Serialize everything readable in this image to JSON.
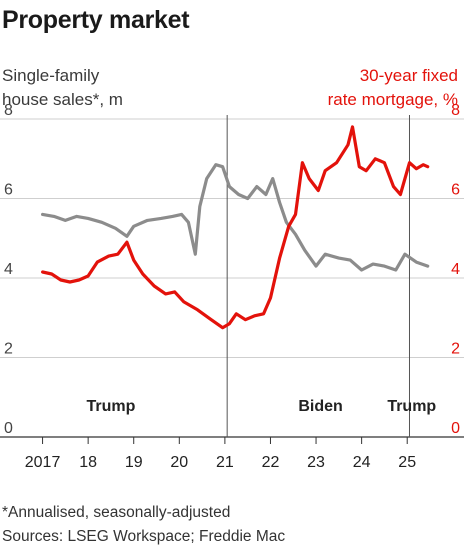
{
  "title": "Property market",
  "left_axis_label": [
    "Single-family",
    "house sales*, m"
  ],
  "right_axis_label": [
    "30-year fixed",
    "rate mortgage, %"
  ],
  "footnote": "*Annualised, seasonally-adjusted",
  "sources": "Sources: LSEG Workspace; Freddie Mac",
  "colors": {
    "sales": "#8c8c8c",
    "mortgage": "#e3120b",
    "grid": "#cfcfcf",
    "divider": "#555555"
  },
  "chart_data": {
    "type": "line",
    "x_ticks": [
      "2017",
      "18",
      "19",
      "20",
      "21",
      "22",
      "23",
      "24",
      "25"
    ],
    "xlim": [
      2016.9,
      2025.5
    ],
    "y_left": {
      "ylim": [
        0,
        8
      ],
      "ticks": [
        "0",
        "2",
        "4",
        "6",
        "8"
      ]
    },
    "y_right": {
      "ylim": [
        0,
        8
      ],
      "ticks": [
        "0",
        "2",
        "4",
        "6",
        "8"
      ]
    },
    "grid": true,
    "annotations": [
      {
        "label": "Trump",
        "x": 2018.5
      },
      {
        "label": "Biden",
        "x": 2023.1
      },
      {
        "label": "Trump",
        "x": 2025.1
      }
    ],
    "dividers": [
      2021.05,
      2025.05
    ],
    "series": [
      {
        "axis": "left",
        "color": "#8c8c8c",
        "points": [
          [
            2017.0,
            5.6
          ],
          [
            2017.25,
            5.55
          ],
          [
            2017.5,
            5.45
          ],
          [
            2017.75,
            5.55
          ],
          [
            2018.0,
            5.5
          ],
          [
            2018.3,
            5.4
          ],
          [
            2018.6,
            5.25
          ],
          [
            2018.85,
            5.05
          ],
          [
            2019.0,
            5.3
          ],
          [
            2019.3,
            5.45
          ],
          [
            2019.6,
            5.5
          ],
          [
            2019.85,
            5.55
          ],
          [
            2020.05,
            5.6
          ],
          [
            2020.2,
            5.4
          ],
          [
            2020.35,
            4.6
          ],
          [
            2020.45,
            5.8
          ],
          [
            2020.6,
            6.5
          ],
          [
            2020.8,
            6.85
          ],
          [
            2020.95,
            6.8
          ],
          [
            2021.1,
            6.3
          ],
          [
            2021.3,
            6.1
          ],
          [
            2021.5,
            6.0
          ],
          [
            2021.7,
            6.3
          ],
          [
            2021.9,
            6.1
          ],
          [
            2022.05,
            6.5
          ],
          [
            2022.2,
            5.9
          ],
          [
            2022.35,
            5.4
          ],
          [
            2022.55,
            5.1
          ],
          [
            2022.75,
            4.7
          ],
          [
            2023.0,
            4.3
          ],
          [
            2023.2,
            4.6
          ],
          [
            2023.5,
            4.5
          ],
          [
            2023.75,
            4.45
          ],
          [
            2024.0,
            4.2
          ],
          [
            2024.25,
            4.35
          ],
          [
            2024.5,
            4.3
          ],
          [
            2024.75,
            4.2
          ],
          [
            2024.95,
            4.6
          ],
          [
            2025.2,
            4.4
          ],
          [
            2025.45,
            4.3
          ]
        ]
      },
      {
        "axis": "right",
        "color": "#e3120b",
        "points": [
          [
            2017.0,
            4.15
          ],
          [
            2017.2,
            4.1
          ],
          [
            2017.4,
            3.95
          ],
          [
            2017.6,
            3.9
          ],
          [
            2017.8,
            3.95
          ],
          [
            2018.0,
            4.05
          ],
          [
            2018.2,
            4.4
          ],
          [
            2018.45,
            4.55
          ],
          [
            2018.65,
            4.6
          ],
          [
            2018.85,
            4.9
          ],
          [
            2019.0,
            4.45
          ],
          [
            2019.2,
            4.1
          ],
          [
            2019.45,
            3.8
          ],
          [
            2019.7,
            3.6
          ],
          [
            2019.9,
            3.65
          ],
          [
            2020.1,
            3.4
          ],
          [
            2020.4,
            3.2
          ],
          [
            2020.7,
            2.95
          ],
          [
            2020.95,
            2.75
          ],
          [
            2021.1,
            2.85
          ],
          [
            2021.25,
            3.1
          ],
          [
            2021.45,
            2.95
          ],
          [
            2021.65,
            3.05
          ],
          [
            2021.85,
            3.1
          ],
          [
            2022.0,
            3.5
          ],
          [
            2022.2,
            4.5
          ],
          [
            2022.4,
            5.3
          ],
          [
            2022.55,
            5.6
          ],
          [
            2022.7,
            6.9
          ],
          [
            2022.85,
            6.5
          ],
          [
            2023.05,
            6.2
          ],
          [
            2023.2,
            6.7
          ],
          [
            2023.45,
            6.9
          ],
          [
            2023.7,
            7.35
          ],
          [
            2023.8,
            7.8
          ],
          [
            2023.95,
            6.8
          ],
          [
            2024.1,
            6.7
          ],
          [
            2024.3,
            7.0
          ],
          [
            2024.5,
            6.9
          ],
          [
            2024.7,
            6.3
          ],
          [
            2024.85,
            6.1
          ],
          [
            2025.05,
            6.9
          ],
          [
            2025.2,
            6.75
          ],
          [
            2025.35,
            6.85
          ],
          [
            2025.45,
            6.8
          ]
        ]
      }
    ]
  }
}
